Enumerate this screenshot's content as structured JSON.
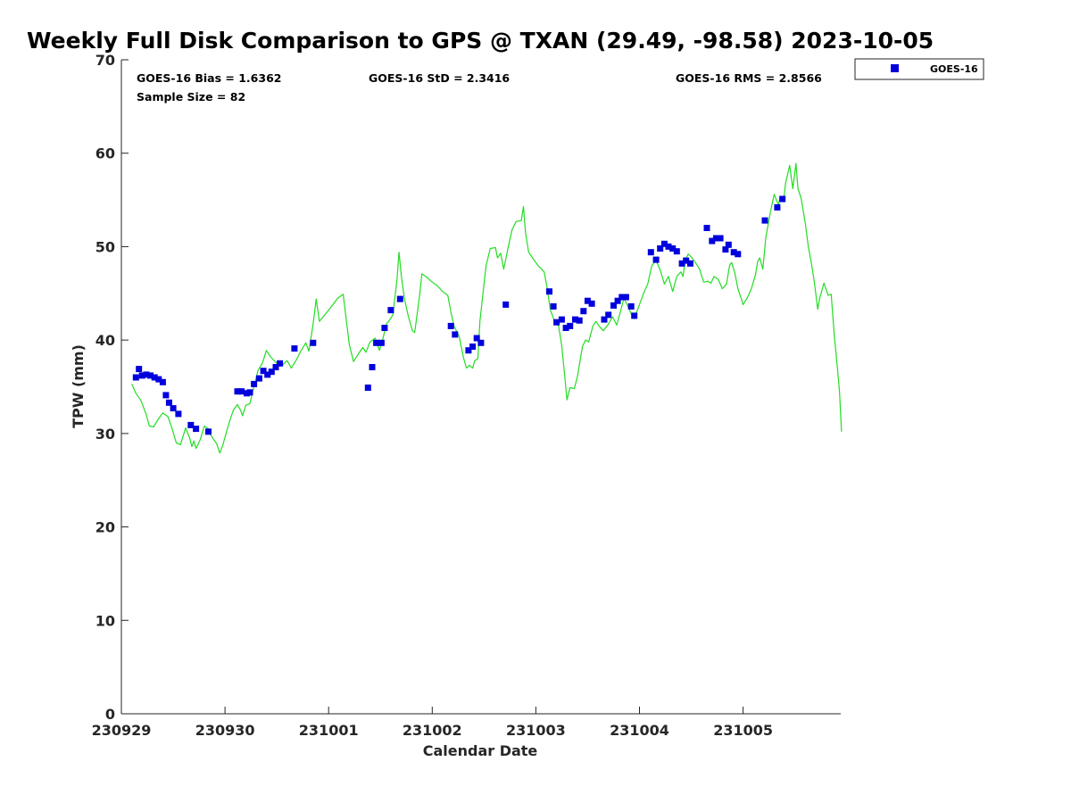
{
  "chart_data": {
    "type": "scatter",
    "title": "Weekly Full Disk Comparison to GPS @ TXAN (29.49, -98.58) 2023-10-05",
    "xlabel": "Calendar Date",
    "ylabel": "TPW (mm)",
    "xlim": [
      0,
      6.95
    ],
    "ylim": [
      0,
      70
    ],
    "y_ticks": [
      0,
      10,
      20,
      30,
      40,
      50,
      60,
      70
    ],
    "x_ticks": [
      {
        "value": 0,
        "label": "230929"
      },
      {
        "value": 1,
        "label": "230930"
      },
      {
        "value": 2,
        "label": "231001"
      },
      {
        "value": 3,
        "label": "231002"
      },
      {
        "value": 4,
        "label": "231003"
      },
      {
        "value": 5,
        "label": "231004"
      },
      {
        "value": 6,
        "label": "231005"
      }
    ],
    "stats": {
      "bias": "GOES-16 Bias = 1.6362",
      "sample_size": "Sample Size = 82",
      "std": "GOES-16 StD = 2.3416",
      "rms": "GOES-16 RMS = 2.8566"
    },
    "legend": {
      "position": "top-right-outside",
      "entries": [
        {
          "name": "GOES-16",
          "color": "#0000dd",
          "marker": "square"
        }
      ]
    },
    "series": [
      {
        "name": "GPS",
        "style": "line",
        "color": "#22dd22",
        "points": [
          [
            0.1,
            35.3
          ],
          [
            0.14,
            34.3
          ],
          [
            0.19,
            33.5
          ],
          [
            0.24,
            32.0
          ],
          [
            0.27,
            30.8
          ],
          [
            0.31,
            30.7
          ],
          [
            0.36,
            31.6
          ],
          [
            0.4,
            32.2
          ],
          [
            0.45,
            31.8
          ],
          [
            0.49,
            30.5
          ],
          [
            0.53,
            29.0
          ],
          [
            0.57,
            28.8
          ],
          [
            0.62,
            30.6
          ],
          [
            0.66,
            29.5
          ],
          [
            0.68,
            28.6
          ],
          [
            0.7,
            29.2
          ],
          [
            0.72,
            28.4
          ],
          [
            0.76,
            29.3
          ],
          [
            0.8,
            30.8
          ],
          [
            0.84,
            30.5
          ],
          [
            0.87,
            29.7
          ],
          [
            0.92,
            28.9
          ],
          [
            0.95,
            27.9
          ],
          [
            0.98,
            28.8
          ],
          [
            1.03,
            30.8
          ],
          [
            1.08,
            32.5
          ],
          [
            1.12,
            33.1
          ],
          [
            1.15,
            32.5
          ],
          [
            1.17,
            31.9
          ],
          [
            1.2,
            33.0
          ],
          [
            1.24,
            33.2
          ],
          [
            1.28,
            35.1
          ],
          [
            1.32,
            36.8
          ],
          [
            1.36,
            37.5
          ],
          [
            1.4,
            38.9
          ],
          [
            1.44,
            38.2
          ],
          [
            1.5,
            37.5
          ],
          [
            1.55,
            37.3
          ],
          [
            1.6,
            37.8
          ],
          [
            1.64,
            37.0
          ],
          [
            1.69,
            37.9
          ],
          [
            1.73,
            38.8
          ],
          [
            1.78,
            39.7
          ],
          [
            1.81,
            38.8
          ],
          [
            1.85,
            41.7
          ],
          [
            1.88,
            44.4
          ],
          [
            1.91,
            42.0
          ],
          [
            2.0,
            43.2
          ],
          [
            2.09,
            44.5
          ],
          [
            2.14,
            44.9
          ],
          [
            2.2,
            39.5
          ],
          [
            2.24,
            37.7
          ],
          [
            2.28,
            38.4
          ],
          [
            2.33,
            39.2
          ],
          [
            2.36,
            38.7
          ],
          [
            2.4,
            39.8
          ],
          [
            2.45,
            40.2
          ],
          [
            2.49,
            38.9
          ],
          [
            2.52,
            40.0
          ],
          [
            2.56,
            41.8
          ],
          [
            2.58,
            42.0
          ],
          [
            2.62,
            42.7
          ],
          [
            2.66,
            46.5
          ],
          [
            2.68,
            49.4
          ],
          [
            2.7,
            47.0
          ],
          [
            2.73,
            44.5
          ],
          [
            2.77,
            42.5
          ],
          [
            2.81,
            41.0
          ],
          [
            2.83,
            40.8
          ],
          [
            2.86,
            43.2
          ],
          [
            2.88,
            45.0
          ],
          [
            2.9,
            47.1
          ],
          [
            2.95,
            46.7
          ],
          [
            3.0,
            46.2
          ],
          [
            3.05,
            45.8
          ],
          [
            3.1,
            45.2
          ],
          [
            3.15,
            44.8
          ],
          [
            3.18,
            43.0
          ],
          [
            3.21,
            41.5
          ],
          [
            3.26,
            40.4
          ],
          [
            3.3,
            38.2
          ],
          [
            3.33,
            37.0
          ],
          [
            3.36,
            37.3
          ],
          [
            3.39,
            37.0
          ],
          [
            3.41,
            37.8
          ],
          [
            3.44,
            38.0
          ],
          [
            3.46,
            42.0
          ],
          [
            3.5,
            46.0
          ],
          [
            3.52,
            48.0
          ],
          [
            3.56,
            49.8
          ],
          [
            3.61,
            49.9
          ],
          [
            3.63,
            48.8
          ],
          [
            3.66,
            49.3
          ],
          [
            3.69,
            47.6
          ],
          [
            3.73,
            49.8
          ],
          [
            3.77,
            51.8
          ],
          [
            3.81,
            52.7
          ],
          [
            3.86,
            52.8
          ],
          [
            3.88,
            54.3
          ],
          [
            3.9,
            51.5
          ],
          [
            3.93,
            49.4
          ],
          [
            3.98,
            48.6
          ],
          [
            4.02,
            48.0
          ],
          [
            4.08,
            47.3
          ],
          [
            4.11,
            45.5
          ],
          [
            4.14,
            43.2
          ],
          [
            4.18,
            42.0
          ],
          [
            4.22,
            41.5
          ],
          [
            4.25,
            39.4
          ],
          [
            4.28,
            36.0
          ],
          [
            4.3,
            33.6
          ],
          [
            4.33,
            34.9
          ],
          [
            4.37,
            34.8
          ],
          [
            4.4,
            36.0
          ],
          [
            4.43,
            38.0
          ],
          [
            4.45,
            39.3
          ],
          [
            4.48,
            40.0
          ],
          [
            4.51,
            39.8
          ],
          [
            4.55,
            41.5
          ],
          [
            4.58,
            42.0
          ],
          [
            4.61,
            41.5
          ],
          [
            4.65,
            41.0
          ],
          [
            4.7,
            41.7
          ],
          [
            4.74,
            42.5
          ],
          [
            4.78,
            41.6
          ],
          [
            4.82,
            43.2
          ],
          [
            4.85,
            44.5
          ],
          [
            4.88,
            43.8
          ],
          [
            4.92,
            42.8
          ],
          [
            4.95,
            42.3
          ],
          [
            5.0,
            43.8
          ],
          [
            5.04,
            45.0
          ],
          [
            5.08,
            46.0
          ],
          [
            5.12,
            48.0
          ],
          [
            5.16,
            48.5
          ],
          [
            5.2,
            47.5
          ],
          [
            5.24,
            46.0
          ],
          [
            5.28,
            46.8
          ],
          [
            5.32,
            45.2
          ],
          [
            5.36,
            46.8
          ],
          [
            5.4,
            47.3
          ],
          [
            5.42,
            46.8
          ],
          [
            5.44,
            48.5
          ],
          [
            5.47,
            49.2
          ],
          [
            5.5,
            48.9
          ],
          [
            5.54,
            48.3
          ],
          [
            5.58,
            47.6
          ],
          [
            5.62,
            46.2
          ],
          [
            5.66,
            46.3
          ],
          [
            5.69,
            46.1
          ],
          [
            5.72,
            46.8
          ],
          [
            5.76,
            46.5
          ],
          [
            5.8,
            45.5
          ],
          [
            5.84,
            46.0
          ],
          [
            5.87,
            48.0
          ],
          [
            5.89,
            48.3
          ],
          [
            5.92,
            47.2
          ],
          [
            5.95,
            45.5
          ],
          [
            5.98,
            44.5
          ],
          [
            6.0,
            43.8
          ],
          [
            6.04,
            44.5
          ],
          [
            6.08,
            45.5
          ],
          [
            6.12,
            47.0
          ],
          [
            6.14,
            48.4
          ],
          [
            6.16,
            48.8
          ],
          [
            6.19,
            47.6
          ],
          [
            6.22,
            51.0
          ],
          [
            6.26,
            53.5
          ],
          [
            6.3,
            55.6
          ],
          [
            6.34,
            54.5
          ],
          [
            6.36,
            55.3
          ],
          [
            6.39,
            54.8
          ],
          [
            6.41,
            56.8
          ],
          [
            6.45,
            58.7
          ],
          [
            6.48,
            56.2
          ],
          [
            6.51,
            58.9
          ],
          [
            6.53,
            56.2
          ],
          [
            6.56,
            55.2
          ],
          [
            6.6,
            52.5
          ],
          [
            6.63,
            50.0
          ],
          [
            6.66,
            48.2
          ],
          [
            6.69,
            46.0
          ],
          [
            6.72,
            43.3
          ],
          [
            6.74,
            44.5
          ],
          [
            6.78,
            46.1
          ],
          [
            6.82,
            44.8
          ],
          [
            6.85,
            44.9
          ],
          [
            6.88,
            40.5
          ],
          [
            6.91,
            37.0
          ],
          [
            6.93,
            34.5
          ],
          [
            6.95,
            30.2
          ]
        ]
      },
      {
        "name": "GOES-16",
        "style": "marker",
        "color": "#0000dd",
        "points": [
          [
            0.14,
            36.0
          ],
          [
            0.17,
            36.9
          ],
          [
            0.2,
            36.2
          ],
          [
            0.24,
            36.3
          ],
          [
            0.28,
            36.2
          ],
          [
            0.32,
            36.0
          ],
          [
            0.36,
            35.8
          ],
          [
            0.4,
            35.5
          ],
          [
            0.43,
            34.1
          ],
          [
            0.46,
            33.3
          ],
          [
            0.5,
            32.7
          ],
          [
            0.55,
            32.1
          ],
          [
            0.67,
            30.9
          ],
          [
            0.72,
            30.5
          ],
          [
            0.84,
            30.2
          ],
          [
            1.12,
            34.5
          ],
          [
            1.16,
            34.5
          ],
          [
            1.21,
            34.3
          ],
          [
            1.24,
            34.4
          ],
          [
            1.28,
            35.3
          ],
          [
            1.33,
            35.9
          ],
          [
            1.37,
            36.7
          ],
          [
            1.41,
            36.3
          ],
          [
            1.45,
            36.6
          ],
          [
            1.49,
            37.1
          ],
          [
            1.53,
            37.5
          ],
          [
            1.67,
            39.1
          ],
          [
            1.85,
            39.7
          ],
          [
            2.38,
            34.9
          ],
          [
            2.42,
            37.1
          ],
          [
            2.46,
            39.7
          ],
          [
            2.51,
            39.7
          ],
          [
            2.54,
            41.3
          ],
          [
            2.6,
            43.2
          ],
          [
            2.69,
            44.4
          ],
          [
            3.18,
            41.5
          ],
          [
            3.22,
            40.6
          ],
          [
            3.35,
            38.9
          ],
          [
            3.39,
            39.3
          ],
          [
            3.43,
            40.2
          ],
          [
            3.47,
            39.7
          ],
          [
            3.71,
            43.8
          ],
          [
            4.13,
            45.2
          ],
          [
            4.17,
            43.6
          ],
          [
            4.2,
            41.9
          ],
          [
            4.25,
            42.2
          ],
          [
            4.29,
            41.3
          ],
          [
            4.33,
            41.5
          ],
          [
            4.38,
            42.2
          ],
          [
            4.42,
            42.1
          ],
          [
            4.46,
            43.1
          ],
          [
            4.5,
            44.2
          ],
          [
            4.54,
            43.9
          ],
          [
            4.66,
            42.2
          ],
          [
            4.7,
            42.7
          ],
          [
            4.75,
            43.7
          ],
          [
            4.79,
            44.2
          ],
          [
            4.83,
            44.6
          ],
          [
            4.87,
            44.6
          ],
          [
            4.92,
            43.6
          ],
          [
            4.95,
            42.6
          ],
          [
            5.11,
            49.4
          ],
          [
            5.16,
            48.6
          ],
          [
            5.2,
            49.8
          ],
          [
            5.24,
            50.3
          ],
          [
            5.28,
            50.0
          ],
          [
            5.32,
            49.8
          ],
          [
            5.36,
            49.5
          ],
          [
            5.41,
            48.2
          ],
          [
            5.45,
            48.5
          ],
          [
            5.49,
            48.2
          ],
          [
            5.65,
            52.0
          ],
          [
            5.7,
            50.6
          ],
          [
            5.74,
            50.9
          ],
          [
            5.78,
            50.9
          ],
          [
            5.83,
            49.7
          ],
          [
            5.86,
            50.2
          ],
          [
            5.91,
            49.4
          ],
          [
            5.95,
            49.2
          ],
          [
            6.21,
            52.8
          ],
          [
            6.33,
            54.2
          ],
          [
            6.38,
            55.1
          ]
        ]
      }
    ]
  }
}
